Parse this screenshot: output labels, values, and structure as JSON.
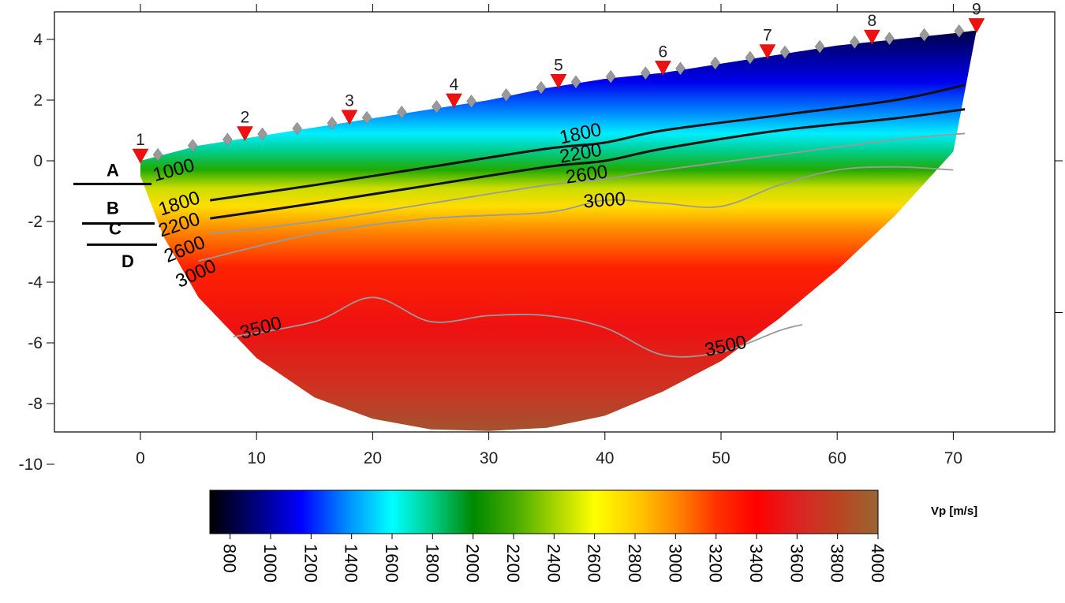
{
  "chart_data": {
    "type": "heatmap",
    "title": "",
    "xlabel": "",
    "ylabel": "",
    "xlim": [
      -7.5,
      79
    ],
    "ylim": [
      -10,
      5
    ],
    "x_ticks": [
      0,
      10,
      20,
      30,
      40,
      50,
      60,
      70
    ],
    "y_ticks": [
      4,
      2,
      0,
      -2,
      -4,
      -6,
      -8,
      -10
    ],
    "grid": false,
    "surface_x": [
      0,
      5,
      10,
      15,
      20,
      25,
      30,
      35,
      40,
      45,
      50,
      55,
      60,
      65,
      70,
      72
    ],
    "surface_y": [
      0,
      0.5,
      0.8,
      1.1,
      1.4,
      1.7,
      2.0,
      2.4,
      2.7,
      2.9,
      3.2,
      3.5,
      3.8,
      4.0,
      4.2,
      4.3
    ],
    "bottom_x": [
      0,
      2,
      5,
      10,
      15,
      20,
      25,
      30,
      35,
      40,
      45,
      50,
      55,
      60,
      65,
      70,
      72
    ],
    "bottom_y": [
      -0.5,
      -2.5,
      -4.5,
      -6.5,
      -7.8,
      -8.5,
      -8.85,
      -8.9,
      -8.8,
      -8.4,
      -7.6,
      -6.6,
      -5.2,
      -3.6,
      -1.8,
      0.3,
      4.3
    ],
    "contours": [
      {
        "value": "1800",
        "x": [
          6,
          15,
          25,
          35,
          40,
          45,
          55,
          65,
          71
        ],
        "y": [
          -1.3,
          -0.8,
          -0.2,
          0.4,
          0.6,
          1.0,
          1.5,
          2.0,
          2.5
        ],
        "style": "major"
      },
      {
        "value": "2200",
        "x": [
          6,
          15,
          25,
          35,
          40,
          45,
          55,
          65,
          71
        ],
        "y": [
          -1.9,
          -1.4,
          -0.8,
          -0.2,
          0.0,
          0.4,
          1.0,
          1.4,
          1.7
        ],
        "style": "major"
      },
      {
        "value": "2600",
        "x": [
          6,
          15,
          25,
          35,
          40,
          45,
          55,
          65,
          71
        ],
        "y": [
          -2.4,
          -2.0,
          -1.4,
          -0.8,
          -0.6,
          -0.3,
          0.2,
          0.7,
          0.9
        ],
        "style": "minor"
      },
      {
        "value": "3000",
        "x": [
          5,
          15,
          25,
          35,
          40,
          45,
          50,
          55,
          60,
          65,
          70
        ],
        "y": [
          -3.3,
          -2.4,
          -1.9,
          -1.7,
          -1.3,
          -1.4,
          -1.5,
          -0.8,
          -0.3,
          -0.2,
          -0.3
        ],
        "style": "minor"
      },
      {
        "value": "3500",
        "x": [
          8,
          15,
          20,
          25,
          30,
          35,
          40,
          45,
          50,
          55,
          57
        ],
        "y": [
          -5.8,
          -5.3,
          -4.5,
          -5.3,
          -5.1,
          -5.1,
          -5.5,
          -6.4,
          -6.3,
          -5.6,
          -5.4
        ],
        "style": "minor"
      }
    ],
    "shallow_contour_label": "1000",
    "contour_labels": [
      {
        "text": "1000",
        "x": 3,
        "y": -0.5,
        "angle": -15
      },
      {
        "text": "1800",
        "x": 3.5,
        "y": -1.6,
        "angle": -18
      },
      {
        "text": "2200",
        "x": 3.5,
        "y": -2.3,
        "angle": -18
      },
      {
        "text": "2600",
        "x": 4,
        "y": -3.1,
        "angle": -22
      },
      {
        "text": "3000",
        "x": 5,
        "y": -3.9,
        "angle": -25
      },
      {
        "text": "1800",
        "x": 38,
        "y": 0.7,
        "angle": -12
      },
      {
        "text": "2200",
        "x": 38,
        "y": 0.05,
        "angle": -10
      },
      {
        "text": "2600",
        "x": 38.5,
        "y": -0.65,
        "angle": -8
      },
      {
        "text": "3000",
        "x": 40,
        "y": -1.5,
        "angle": -4
      },
      {
        "text": "3500",
        "x": 10.5,
        "y": -5.7,
        "angle": -15
      },
      {
        "text": "3500",
        "x": 50.5,
        "y": -6.3,
        "angle": -12
      }
    ],
    "layers": [
      {
        "label": "A",
        "y": -0.4
      },
      {
        "label": "B",
        "y": -1.7
      },
      {
        "label": "C",
        "y": -2.4
      },
      {
        "label": "D",
        "y": -3.4
      }
    ],
    "sources": [
      {
        "label": "1",
        "x": 0
      },
      {
        "label": "2",
        "x": 9
      },
      {
        "label": "3",
        "x": 18
      },
      {
        "label": "4",
        "x": 27
      },
      {
        "label": "5",
        "x": 36
      },
      {
        "label": "6",
        "x": 45
      },
      {
        "label": "7",
        "x": 54
      },
      {
        "label": "8",
        "x": 63
      },
      {
        "label": "9",
        "x": 72
      }
    ],
    "source_color": "#ee1111",
    "receiver_spacing": 3,
    "receiver_color": "#999999",
    "colorbar": {
      "label": "Vp [m/s]",
      "min": 700,
      "max": 4000,
      "ticks": [
        800,
        1000,
        1200,
        1400,
        1600,
        1800,
        2000,
        2200,
        2400,
        2600,
        2800,
        3000,
        3200,
        3400,
        3600,
        3800,
        4000
      ],
      "stops": [
        {
          "v": 700,
          "color": "#000000"
        },
        {
          "v": 900,
          "color": "#00006e"
        },
        {
          "v": 1150,
          "color": "#0000ff"
        },
        {
          "v": 1400,
          "color": "#0099ff"
        },
        {
          "v": 1600,
          "color": "#00ffff"
        },
        {
          "v": 1800,
          "color": "#00cc88"
        },
        {
          "v": 2000,
          "color": "#008800"
        },
        {
          "v": 2200,
          "color": "#44aa00"
        },
        {
          "v": 2450,
          "color": "#bbdd00"
        },
        {
          "v": 2600,
          "color": "#ffff00"
        },
        {
          "v": 2800,
          "color": "#ffcc00"
        },
        {
          "v": 3000,
          "color": "#ff8800"
        },
        {
          "v": 3200,
          "color": "#ff3300"
        },
        {
          "v": 3400,
          "color": "#ff0000"
        },
        {
          "v": 3600,
          "color": "#dd2222"
        },
        {
          "v": 3800,
          "color": "#bb4422"
        },
        {
          "v": 4000,
          "color": "#996633"
        }
      ]
    }
  }
}
